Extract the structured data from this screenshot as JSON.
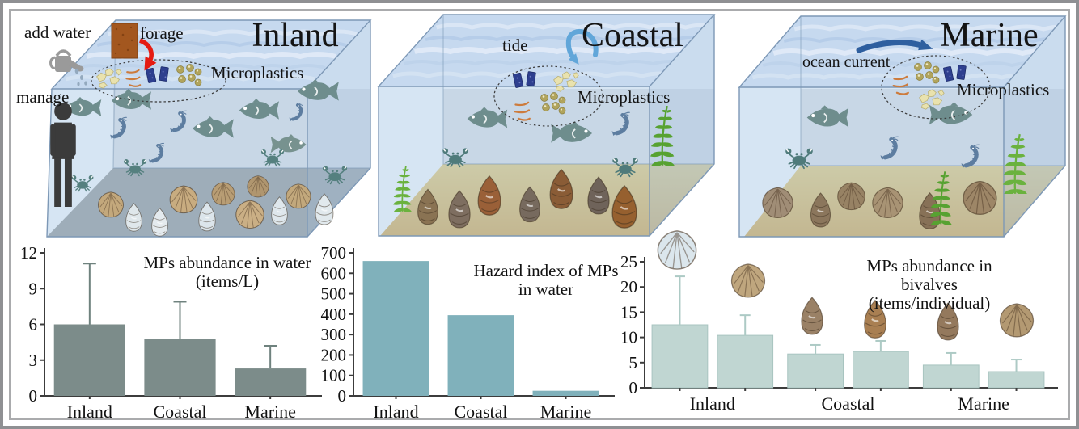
{
  "panels": [
    {
      "title": "Inland",
      "labels": {
        "add_water": "add water",
        "forage": "forage",
        "manage": "manage",
        "microplastics": "Microplastics"
      }
    },
    {
      "title": "Coastal",
      "labels": {
        "tide": "tide",
        "microplastics": "Microplastics"
      }
    },
    {
      "title": "Marine",
      "labels": {
        "ocean_current": "ocean current",
        "microplastics": "Microplastics"
      }
    }
  ],
  "palette": {
    "water_surface": "#c6d9ef",
    "water_front": "#aecbe8",
    "glass_edge": "#7d98b6",
    "back_wall": "#e2e3e5",
    "sediment_inland": "#8e8e8a",
    "sand_top": "#ecca69",
    "sand_bottom": "#d9a23a",
    "fish": "#6e8d8d",
    "shrimp": "#5d7da0",
    "crab": "#4f7b7b",
    "fern": "#57a231",
    "person": "#3b3b3b",
    "watering_can": "#9a9a9a",
    "forage_block": "#a3571f",
    "forage_arrow": "#e51b12",
    "tide_arrow": "#61a6d9",
    "ocean_current_arrow": "#2e5f9f",
    "mp_fragment": "#e9e2ae",
    "mp_fiber": "#cd7b3c",
    "mp_film": "#2e3f8f",
    "mp_bead": "#b1a45c"
  },
  "chart_data": [
    {
      "type": "bar",
      "title": "MPs abundance in water (items/L)",
      "title_lines": [
        "MPs abundance in water",
        "(items/L)"
      ],
      "categories": [
        "Inland",
        "Coastal",
        "Marine"
      ],
      "values": [
        6.0,
        4.8,
        2.3
      ],
      "errors_plus": [
        5.1,
        3.1,
        1.9
      ],
      "ylim": [
        0,
        12
      ],
      "yticks": [
        0,
        3,
        6,
        9,
        12
      ],
      "grid": false,
      "bar_color": "#7c8c8a",
      "error_color": "#6f827e",
      "xlabel": "",
      "ylabel": ""
    },
    {
      "type": "bar",
      "title": "Hazard index of MPs in water",
      "title_lines": [
        "Hazard index of MPs",
        "in water"
      ],
      "categories": [
        "Inland",
        "Coastal",
        "Marine"
      ],
      "values": [
        660,
        395,
        25
      ],
      "ylim": [
        0,
        700
      ],
      "yticks": [
        0,
        100,
        200,
        300,
        400,
        500,
        600,
        700
      ],
      "grid": false,
      "bar_color": "#80b1bb",
      "xlabel": "",
      "ylabel": ""
    },
    {
      "type": "bar",
      "title": "MPs abundance in bivalves (items/individual)",
      "title_lines": [
        "MPs abundance in bivalves",
        "(items/individual)"
      ],
      "categories": [
        "Inland",
        "Coastal",
        "Marine"
      ],
      "series": [
        {
          "values": [
            12.5,
            6.7,
            4.5
          ],
          "errors_plus": [
            9.6,
            1.8,
            2.4
          ]
        },
        {
          "values": [
            10.4,
            7.2,
            3.2
          ],
          "errors_plus": [
            4.0,
            2.1,
            2.4
          ]
        }
      ],
      "ylim": [
        0,
        25
      ],
      "yticks": [
        0,
        5,
        10,
        15,
        20,
        25
      ],
      "grid": false,
      "bar_color": "#c0d6d2",
      "bar_stroke": "#a8c4c0",
      "error_color": "#adcac5",
      "xlabel": "",
      "ylabel": "",
      "shell_icons": [
        {
          "name": "white-clam-shell-icon",
          "color": "#dbe6ec"
        },
        {
          "name": "cockle-shell-icon",
          "color": "#bfa67e"
        },
        {
          "name": "sea-snail-shell-icon",
          "color": "#9a8166"
        },
        {
          "name": "round-snail-shell-icon",
          "color": "#a97f52"
        },
        {
          "name": "sea-snail-shell-icon",
          "color": "#94795d"
        },
        {
          "name": "cockle-shell-icon",
          "color": "#b39972"
        }
      ]
    }
  ]
}
